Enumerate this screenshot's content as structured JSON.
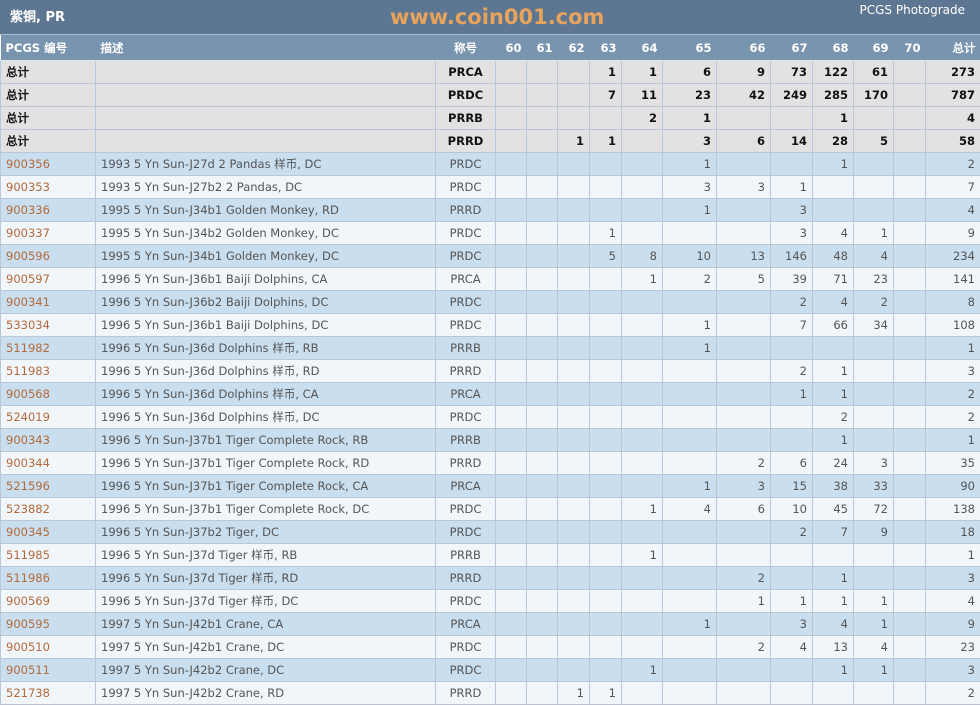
{
  "header": {
    "title": "紫铜, PR",
    "photograde_link": "PCGS Photograde"
  },
  "columns": [
    "PCGS 编号",
    "描述",
    "称号",
    "60",
    "61",
    "62",
    "63",
    "64",
    "65",
    "66",
    "67",
    "68",
    "69",
    "70",
    "总计"
  ],
  "totals": [
    {
      "label": "总计",
      "designation": "PRCA",
      "grades": [
        "",
        "",
        "",
        "1",
        "1",
        "6",
        "9",
        "73",
        "122",
        "61",
        ""
      ],
      "total": "273"
    },
    {
      "label": "总计",
      "designation": "PRDC",
      "grades": [
        "",
        "",
        "",
        "7",
        "11",
        "23",
        "42",
        "249",
        "285",
        "170",
        ""
      ],
      "total": "787"
    },
    {
      "label": "总计",
      "designation": "PRRB",
      "grades": [
        "",
        "",
        "",
        "",
        "2",
        "1",
        "",
        "",
        "1",
        "",
        ""
      ],
      "total": "4"
    },
    {
      "label": "总计",
      "designation": "PRRD",
      "grades": [
        "",
        "",
        "1",
        "1",
        "",
        "3",
        "6",
        "14",
        "28",
        "5",
        ""
      ],
      "total": "58"
    }
  ],
  "rows": [
    {
      "id": "900356",
      "desc": "1993 5 Yn Sun-J27d 2 Pandas 样币, DC",
      "designation": "PRDC",
      "grades": [
        "",
        "",
        "",
        "",
        "",
        "1",
        "",
        "",
        "1",
        "",
        ""
      ],
      "total": "2"
    },
    {
      "id": "900353",
      "desc": "1993 5 Yn Sun-J27b2 2 Pandas, DC",
      "designation": "PRDC",
      "grades": [
        "",
        "",
        "",
        "",
        "",
        "3",
        "3",
        "1",
        "",
        "",
        ""
      ],
      "total": "7"
    },
    {
      "id": "900336",
      "desc": "1995 5 Yn Sun-J34b1 Golden Monkey, RD",
      "designation": "PRRD",
      "grades": [
        "",
        "",
        "",
        "",
        "",
        "1",
        "",
        "3",
        "",
        "",
        ""
      ],
      "total": "4"
    },
    {
      "id": "900337",
      "desc": "1995 5 Yn Sun-J34b2 Golden Monkey, DC",
      "designation": "PRDC",
      "grades": [
        "",
        "",
        "",
        "1",
        "",
        "",
        "",
        "3",
        "4",
        "1",
        ""
      ],
      "total": "9"
    },
    {
      "id": "900596",
      "desc": "1995 5 Yn Sun-J34b1 Golden Monkey, DC",
      "designation": "PRDC",
      "grades": [
        "",
        "",
        "",
        "5",
        "8",
        "10",
        "13",
        "146",
        "48",
        "4",
        ""
      ],
      "total": "234"
    },
    {
      "id": "900597",
      "desc": "1996 5 Yn Sun-J36b1 Baiji Dolphins, CA",
      "designation": "PRCA",
      "grades": [
        "",
        "",
        "",
        "",
        "1",
        "2",
        "5",
        "39",
        "71",
        "23",
        ""
      ],
      "total": "141"
    },
    {
      "id": "900341",
      "desc": "1996 5 Yn Sun-J36b2 Baiji Dolphins, DC",
      "designation": "PRDC",
      "grades": [
        "",
        "",
        "",
        "",
        "",
        "",
        "",
        "2",
        "4",
        "2",
        ""
      ],
      "total": "8"
    },
    {
      "id": "533034",
      "desc": "1996 5 Yn Sun-J36b1 Baiji Dolphins, DC",
      "designation": "PRDC",
      "grades": [
        "",
        "",
        "",
        "",
        "",
        "1",
        "",
        "7",
        "66",
        "34",
        ""
      ],
      "total": "108"
    },
    {
      "id": "511982",
      "desc": "1996 5 Yn Sun-J36d Dolphins 样币, RB",
      "designation": "PRRB",
      "grades": [
        "",
        "",
        "",
        "",
        "",
        "1",
        "",
        "",
        "",
        "",
        ""
      ],
      "total": "1"
    },
    {
      "id": "511983",
      "desc": "1996 5 Yn Sun-J36d Dolphins 样币, RD",
      "designation": "PRRD",
      "grades": [
        "",
        "",
        "",
        "",
        "",
        "",
        "",
        "2",
        "1",
        "",
        ""
      ],
      "total": "3"
    },
    {
      "id": "900568",
      "desc": "1996 5 Yn Sun-J36d Dolphins 样币, CA",
      "designation": "PRCA",
      "grades": [
        "",
        "",
        "",
        "",
        "",
        "",
        "",
        "1",
        "1",
        "",
        ""
      ],
      "total": "2"
    },
    {
      "id": "524019",
      "desc": "1996 5 Yn Sun-J36d Dolphins 样币, DC",
      "designation": "PRDC",
      "grades": [
        "",
        "",
        "",
        "",
        "",
        "",
        "",
        "",
        "2",
        "",
        ""
      ],
      "total": "2"
    },
    {
      "id": "900343",
      "desc": "1996 5 Yn Sun-J37b1 Tiger Complete Rock, RB",
      "designation": "PRRB",
      "grades": [
        "",
        "",
        "",
        "",
        "",
        "",
        "",
        "",
        "1",
        "",
        ""
      ],
      "total": "1"
    },
    {
      "id": "900344",
      "desc": "1996 5 Yn Sun-J37b1 Tiger Complete Rock, RD",
      "designation": "PRRD",
      "grades": [
        "",
        "",
        "",
        "",
        "",
        "",
        "2",
        "6",
        "24",
        "3",
        ""
      ],
      "total": "35"
    },
    {
      "id": "521596",
      "desc": "1996 5 Yn Sun-J37b1 Tiger Complete Rock, CA",
      "designation": "PRCA",
      "grades": [
        "",
        "",
        "",
        "",
        "",
        "1",
        "3",
        "15",
        "38",
        "33",
        ""
      ],
      "total": "90"
    },
    {
      "id": "523882",
      "desc": "1996 5 Yn Sun-J37b1 Tiger Complete Rock, DC",
      "designation": "PRDC",
      "grades": [
        "",
        "",
        "",
        "",
        "1",
        "4",
        "6",
        "10",
        "45",
        "72",
        ""
      ],
      "total": "138"
    },
    {
      "id": "900345",
      "desc": "1996 5 Yn Sun-J37b2 Tiger, DC",
      "designation": "PRDC",
      "grades": [
        "",
        "",
        "",
        "",
        "",
        "",
        "",
        "2",
        "7",
        "9",
        ""
      ],
      "total": "18"
    },
    {
      "id": "511985",
      "desc": "1996 5 Yn Sun-J37d Tiger 样币, RB",
      "designation": "PRRB",
      "grades": [
        "",
        "",
        "",
        "",
        "1",
        "",
        "",
        "",
        "",
        "",
        ""
      ],
      "total": "1"
    },
    {
      "id": "511986",
      "desc": "1996 5 Yn Sun-J37d Tiger 样币, RD",
      "designation": "PRRD",
      "grades": [
        "",
        "",
        "",
        "",
        "",
        "",
        "2",
        "",
        "1",
        "",
        ""
      ],
      "total": "3"
    },
    {
      "id": "900569",
      "desc": "1996 5 Yn Sun-J37d Tiger 样币, DC",
      "designation": "PRDC",
      "grades": [
        "",
        "",
        "",
        "",
        "",
        "",
        "1",
        "1",
        "1",
        "1",
        ""
      ],
      "total": "4"
    },
    {
      "id": "900595",
      "desc": "1997 5 Yn Sun-J42b1 Crane, CA",
      "designation": "PRCA",
      "grades": [
        "",
        "",
        "",
        "",
        "",
        "1",
        "",
        "3",
        "4",
        "1",
        ""
      ],
      "total": "9"
    },
    {
      "id": "900510",
      "desc": "1997 5 Yn Sun-J42b1 Crane, DC",
      "designation": "PRDC",
      "grades": [
        "",
        "",
        "",
        "",
        "",
        "",
        "2",
        "4",
        "13",
        "4",
        ""
      ],
      "total": "23"
    },
    {
      "id": "900511",
      "desc": "1997 5 Yn Sun-J42b2 Crane, DC",
      "designation": "PRDC",
      "grades": [
        "",
        "",
        "",
        "",
        "1",
        "",
        "",
        "",
        "1",
        "1",
        ""
      ],
      "total": "3"
    },
    {
      "id": "521738",
      "desc": "1997 5 Yn Sun-J42b2 Crane, RD",
      "designation": "PRRD",
      "grades": [
        "",
        "",
        "1",
        "1",
        "",
        "",
        "",
        "",
        "",
        "",
        ""
      ],
      "total": "2"
    }
  ],
  "watermark": "www.coin001.com"
}
